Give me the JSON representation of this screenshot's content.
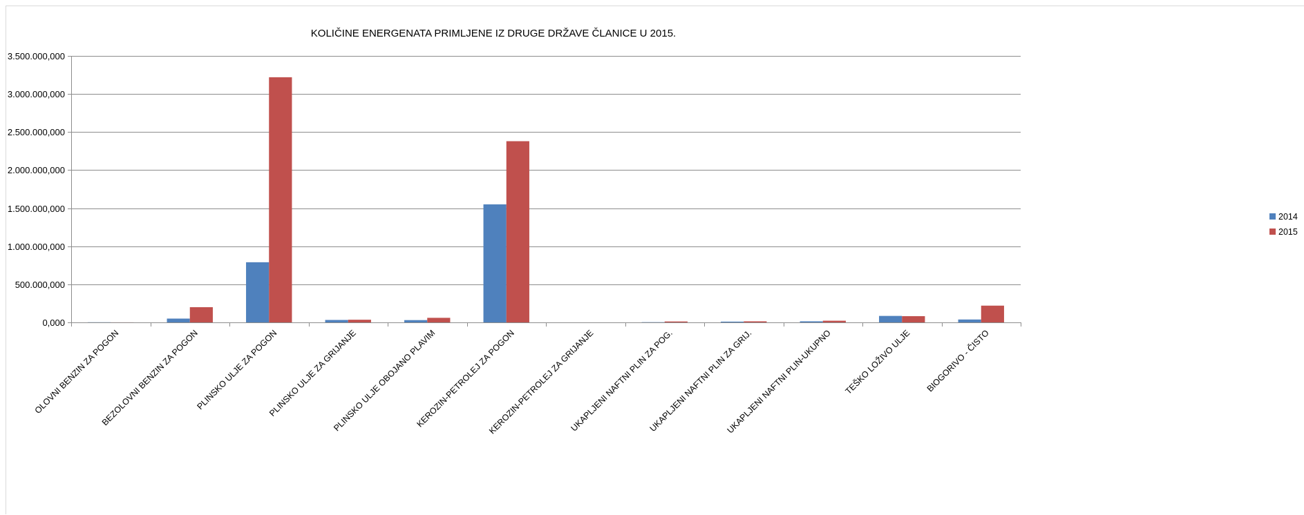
{
  "chart_data": {
    "type": "bar",
    "title": "KOLIČINE ENERGENATA PRIMLJENE IZ DRUGE DRŽAVE ČLANICE  U 2015.",
    "xlabel": "",
    "ylabel": "",
    "ylim": [
      0,
      3500000000
    ],
    "y_ticks": [
      0,
      500000000,
      1000000000,
      1500000000,
      2000000000,
      2500000000,
      3000000000,
      3500000000
    ],
    "y_tick_labels": [
      "0,000",
      "500.000,000",
      "1.000.000,000",
      "1.500.000,000",
      "2.000.000,000",
      "2.500.000,000",
      "3.000.000,000",
      "3.500.000,000"
    ],
    "grid": true,
    "legend_position": "right",
    "categories": [
      "OLOVNI BENZIN ZA POGON",
      "BEZOLOVNI BENZIN ZA POGON",
      "PLINSKO ULJE ZA POGON",
      "PLINSKO ULJE ZA GRIJANJE",
      "PLINSKO ULJE OBOJANO PLAVIM",
      "KEROZIN-PETROLEJ ZA POGON",
      "KEROZIN-PETROLEJ ZA GRIJANJE",
      "UKAPLJENI NAFTNI PLIN ZA POG.",
      "UKAPLJENI NAFTNI PLIN ZA GRIJ.",
      "UKAPLJENI NAFTNI PLIN-UKUPNO",
      "TEŠKO LOŽIVO ULJE",
      "BIOGORIVO - ČISTO"
    ],
    "series": [
      {
        "name": "2014",
        "color": "#4f81bd",
        "values": [
          2000000,
          50000000,
          790000000,
          32000000,
          30000000,
          1550000000,
          0,
          3000000,
          10000000,
          14000000,
          85000000,
          38000000
        ]
      },
      {
        "name": "2015",
        "color": "#c0504d",
        "values": [
          1000000,
          200000000,
          3220000000,
          35000000,
          60000000,
          2380000000,
          0,
          12000000,
          14000000,
          22000000,
          82000000,
          220000000
        ]
      }
    ]
  }
}
